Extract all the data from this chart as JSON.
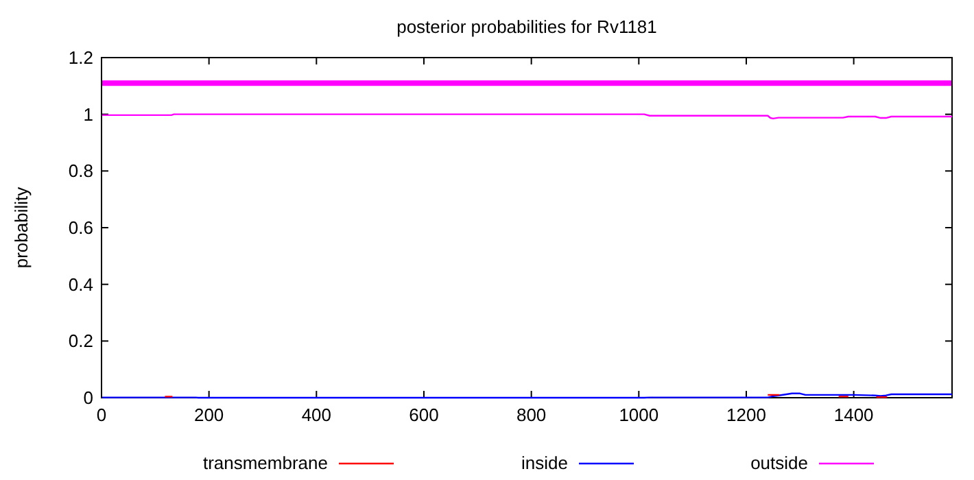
{
  "chart_data": {
    "type": "line",
    "title": "posterior probabilities for Rv1181",
    "ylabel": "probability",
    "xlim": [
      0,
      1583
    ],
    "xticks": [
      0,
      200,
      400,
      600,
      800,
      1000,
      1200,
      1400
    ],
    "ylim": [
      0,
      1.2
    ],
    "yticks": [
      0,
      0.2,
      0.4,
      0.6,
      0.8,
      1,
      1.2
    ],
    "legend": "bottom",
    "grid": false,
    "ref_lines": [
      {
        "axis": "y",
        "value": 1.11,
        "color": "#ff00ff"
      }
    ],
    "series": [
      {
        "name": "transmembrane",
        "color": "#ff0000",
        "x": [
          118,
          132,
          1000,
          1240,
          1262,
          1300,
          1372,
          1390,
          1420,
          1442,
          1462
        ],
        "values": [
          0.004,
          0.004,
          null,
          0.01,
          0.01,
          null,
          0.004,
          0.004,
          null,
          0.002,
          0.002
        ]
      },
      {
        "name": "inside",
        "color": "#0000ff",
        "x": [
          1,
          175,
          180,
          1010,
          1020,
          1240,
          1250,
          1260,
          1275,
          1285,
          1300,
          1310,
          1380,
          1400,
          1440,
          1450,
          1460,
          1470,
          1583
        ],
        "values": [
          0.001,
          0.001,
          0,
          0,
          0.001,
          0.001,
          0.005,
          0.008,
          0.012,
          0.015,
          0.015,
          0.01,
          0.01,
          0.01,
          0.008,
          0.006,
          0.008,
          0.012,
          0.012
        ]
      },
      {
        "name": "outside",
        "color": "#ff00ff",
        "x": [
          1,
          130,
          135,
          1010,
          1020,
          1240,
          1245,
          1250,
          1260,
          1300,
          1380,
          1390,
          1440,
          1450,
          1460,
          1470,
          1583
        ],
        "values": [
          0.997,
          0.997,
          1,
          1,
          0.995,
          0.995,
          0.987,
          0.985,
          0.988,
          0.988,
          0.988,
          0.992,
          0.992,
          0.987,
          0.987,
          0.992,
          0.992
        ]
      }
    ]
  }
}
